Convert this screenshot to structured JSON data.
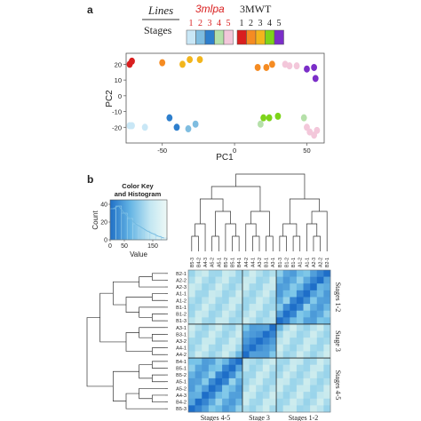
{
  "panel_a": {
    "letter": "a"
  },
  "panel_b": {
    "letter": "b"
  },
  "legend": {
    "lines_label": "Lines",
    "stages_label": "Stages",
    "mutant_name": "3mlpa",
    "wt_name": "3MWT",
    "stage_numbers": [
      "1",
      "2",
      "3",
      "4",
      "5"
    ],
    "mutant_colors": [
      "#c9e7f6",
      "#7fbde0",
      "#2e7fcd",
      "#b5e0a9",
      "#f3c7da"
    ],
    "wt_colors": [
      "#d91f1f",
      "#f58b22",
      "#f2b51c",
      "#7dd41a",
      "#7b2ec8"
    ]
  },
  "color_key": {
    "title_line1": "Color Key",
    "title_line2": "and Histogram",
    "ylabel": "Count",
    "xlabel": "Value",
    "yticks": [
      "0",
      "20",
      "40"
    ],
    "xticks": [
      "0",
      "50",
      "150"
    ]
  },
  "heatmap_annotations": {
    "bottom": [
      "Stages 4-5",
      "Stage 3",
      "Stages 1-2"
    ],
    "right": [
      "Stages 1-2",
      "Stage 3",
      "Stages 4-5"
    ]
  },
  "row_labels": [
    "B2-1",
    "A2-2",
    "A2-3",
    "A1-1",
    "A1-2",
    "B1-1",
    "B1-2",
    "B1-3",
    "A3-1",
    "B3-1",
    "A3-2",
    "A4-1",
    "A4-2",
    "B4-1",
    "B5-1",
    "B5-2",
    "A5-1",
    "A5-2",
    "A4-3",
    "B4-2",
    "B5-3"
  ],
  "col_labels": [
    "B5-3",
    "B4-2",
    "A4-3",
    "A5-2",
    "A5-1",
    "B5-2",
    "B5-1",
    "B4-1",
    "A4-2",
    "A4-1",
    "A3-2",
    "B3-1",
    "A3-1",
    "B1-3",
    "B1-2",
    "B1-1",
    "A1-2",
    "A1-1",
    "A2-3",
    "A2-2",
    "B2-1"
  ],
  "chart_data": [
    {
      "type": "scatter",
      "title": "",
      "xlabel": "PC1",
      "ylabel": "PC2",
      "xlim": [
        -75,
        62
      ],
      "ylim": [
        -30,
        27
      ],
      "xticks": [
        -50,
        0,
        50
      ],
      "yticks": [
        -20,
        -10,
        0,
        10,
        20
      ],
      "points": [
        {
          "x": -73,
          "y": 20,
          "color": "#d91f1f"
        },
        {
          "x": -71,
          "y": 22,
          "color": "#d91f1f"
        },
        {
          "x": -50,
          "y": 21,
          "color": "#f58b22"
        },
        {
          "x": -36,
          "y": 20,
          "color": "#f2b51c"
        },
        {
          "x": -31,
          "y": 23,
          "color": "#f2b51c"
        },
        {
          "x": -24,
          "y": 23,
          "color": "#f2b51c"
        },
        {
          "x": 16,
          "y": 18,
          "color": "#f58b22"
        },
        {
          "x": 22,
          "y": 18,
          "color": "#f58b22"
        },
        {
          "x": 26,
          "y": 20,
          "color": "#f58b22"
        },
        {
          "x": 35,
          "y": 20,
          "color": "#f3c7da"
        },
        {
          "x": 38,
          "y": 19,
          "color": "#f3c7da"
        },
        {
          "x": 43,
          "y": 19,
          "color": "#f3c7da"
        },
        {
          "x": 50,
          "y": 17,
          "color": "#7b2ec8"
        },
        {
          "x": 55,
          "y": 18,
          "color": "#7b2ec8"
        },
        {
          "x": 56,
          "y": 11,
          "color": "#7b2ec8"
        },
        {
          "x": -80,
          "y": -19,
          "color": "#c9e7f6"
        },
        {
          "x": -71,
          "y": -19,
          "color": "#c9e7f6"
        },
        {
          "x": -62,
          "y": -20,
          "color": "#c9e7f6"
        },
        {
          "x": -45,
          "y": -14,
          "color": "#2e7fcd"
        },
        {
          "x": -40,
          "y": -20,
          "color": "#2e7fcd"
        },
        {
          "x": -32,
          "y": -21,
          "color": "#7fbde0"
        },
        {
          "x": -27,
          "y": -18,
          "color": "#7fbde0"
        },
        {
          "x": 18,
          "y": -18,
          "color": "#b5e0a9"
        },
        {
          "x": 20,
          "y": -14,
          "color": "#7dd41a"
        },
        {
          "x": 24,
          "y": -14,
          "color": "#7dd41a"
        },
        {
          "x": 30,
          "y": -13,
          "color": "#7dd41a"
        },
        {
          "x": 48,
          "y": -14,
          "color": "#b5e0a9"
        },
        {
          "x": 50,
          "y": -20,
          "color": "#f3c7da"
        },
        {
          "x": 52,
          "y": -23,
          "color": "#f3c7da"
        },
        {
          "x": 55,
          "y": -25,
          "color": "#f3c7da"
        },
        {
          "x": 57,
          "y": -22,
          "color": "#f3c7da"
        }
      ]
    },
    {
      "type": "heatmap",
      "title": "",
      "n": 21,
      "groups": [
        [
          0,
          8
        ],
        [
          8,
          13
        ],
        [
          13,
          21
        ]
      ],
      "note": "symmetric correlation heatmap; diagonal strongest, within-group blocks moderate"
    },
    {
      "type": "bar",
      "title": "Color Key and Histogram",
      "xlabel": "Value",
      "ylabel": "Count",
      "ylim": [
        0,
        45
      ],
      "xlim": [
        0,
        200
      ],
      "categories": [
        "0-20",
        "20-40",
        "40-60",
        "60-80",
        "80-100",
        "100-120",
        "120-140",
        "140-160",
        "160-180",
        "180-200"
      ],
      "values": [
        35,
        38,
        30,
        24,
        18,
        14,
        10,
        7,
        4,
        2
      ]
    }
  ]
}
